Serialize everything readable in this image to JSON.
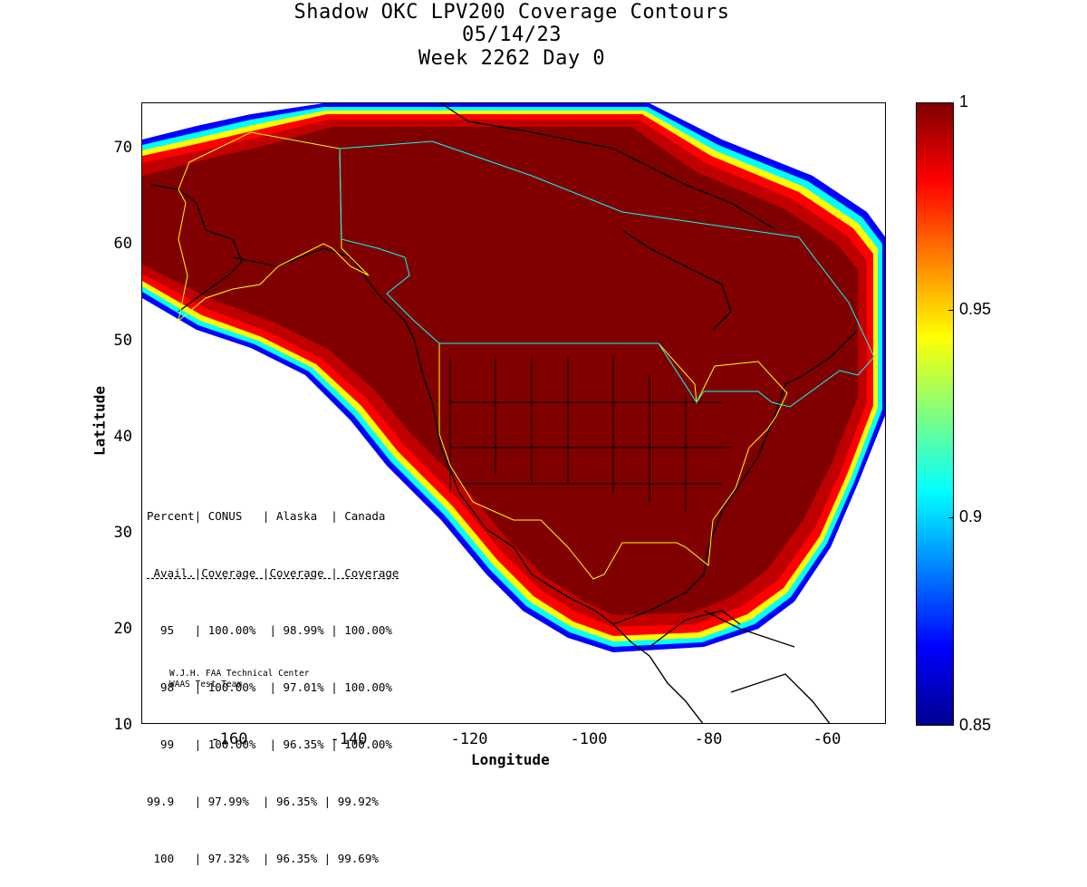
{
  "title": {
    "line1": "Shadow OKC LPV200 Coverage Contours",
    "line2": "05/14/23",
    "line3": "Week 2262 Day 0"
  },
  "map": {
    "xlabel": "Longitude",
    "ylabel": "Latitude",
    "x_ticks": [
      "-160",
      "-140",
      "-120",
      "-100",
      "-80",
      "-60"
    ],
    "y_ticks": [
      "70",
      "60",
      "50",
      "40",
      "30",
      "20",
      "10"
    ],
    "x_range": [
      -174,
      -50
    ],
    "y_range": [
      10,
      75
    ]
  },
  "colorbar": {
    "labels": [
      "1",
      "0.95",
      "0.9",
      "0.85"
    ],
    "range": [
      0.85,
      1
    ],
    "colors": [
      "#00008f",
      "#0000ff",
      "#0080ff",
      "#00ffff",
      "#80ff80",
      "#ffff00",
      "#ff8000",
      "#ff0000",
      "#800000"
    ]
  },
  "stats_table": {
    "header1": "Percent| CONUS   | Alaska  | Canada",
    "header2": " Avail.|Coverage |Coverage | Coverage",
    "divider": "---------------------------------------",
    "rows": [
      "  95   | 100.00%  | 98.99% | 100.00%",
      "  98   | 100.00%  | 97.01% | 100.00%",
      "  99   | 100.00%  | 96.35% | 100.00%",
      "99.9   | 97.99%  | 96.35% | 99.92%",
      " 100   | 97.32%  | 96.35% | 99.69%"
    ]
  },
  "credit": {
    "line1": "W.J.H. FAA Technical Center",
    "line2": "WAAS Test Team"
  },
  "boundary_colors": {
    "us_alaska": "#ffff00",
    "canada": "#00ffff",
    "coastline": "#000000"
  }
}
